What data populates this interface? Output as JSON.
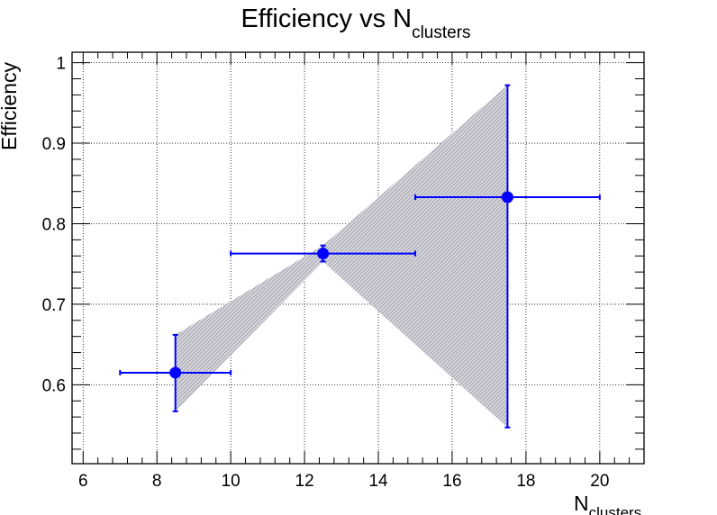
{
  "chart_data": {
    "type": "scatter",
    "title_main": "Efficiency vs N",
    "title_sub": "clusters",
    "xlabel_main": "N",
    "xlabel_sub": "clusters",
    "ylabel": "Efficiency",
    "xlim": [
      5.7,
      21.2
    ],
    "ylim": [
      0.502,
      1.013
    ],
    "xticks": [
      6,
      8,
      10,
      12,
      14,
      16,
      18,
      20
    ],
    "xtick_labels": [
      "6",
      "8",
      "10",
      "12",
      "14",
      "16",
      "18",
      "20"
    ],
    "yticks": [
      0.6,
      0.7,
      0.8,
      0.9,
      1.0
    ],
    "ytick_labels": [
      "0.6",
      "0.7",
      "0.8",
      "0.9",
      "1"
    ],
    "grid": true,
    "points": [
      {
        "x": 8.5,
        "y": 0.615,
        "xlow": 7,
        "xhigh": 10,
        "ylow": 0.567,
        "yhigh": 0.662
      },
      {
        "x": 12.5,
        "y": 0.763,
        "xlow": 10,
        "xhigh": 15,
        "ylow": 0.753,
        "yhigh": 0.773
      },
      {
        "x": 17.5,
        "y": 0.833,
        "xlow": 15,
        "xhigh": 20,
        "ylow": 0.547,
        "yhigh": 0.972
      }
    ],
    "band": {
      "x": [
        8.5,
        12.5,
        17.5
      ],
      "upper": [
        0.662,
        0.773,
        0.972
      ],
      "lower": [
        0.567,
        0.753,
        0.547
      ]
    },
    "colors": {
      "marker": "#0000ff",
      "band": "#9a9aa8",
      "grid": "#000000"
    }
  }
}
